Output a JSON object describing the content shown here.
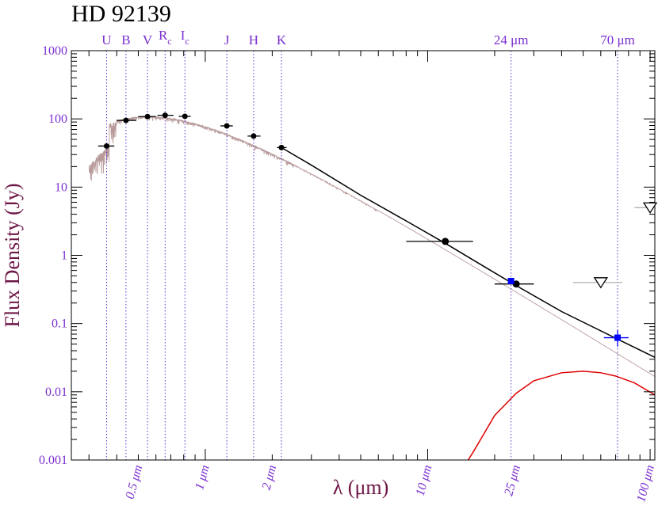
{
  "chart_data": {
    "type": "scatter",
    "title": "HD 92139",
    "xlabel": "λ (μm)",
    "ylabel": "Flux Density (Jy)",
    "xscale": "log",
    "yscale": "log",
    "xlim": [
      0.25,
      105
    ],
    "ylim": [
      0.001,
      1000
    ],
    "grid": false,
    "y_ticks": [
      {
        "value": 0.001,
        "label": "0.001"
      },
      {
        "value": 0.01,
        "label": "0.01"
      },
      {
        "value": 0.1,
        "label": "0.1"
      },
      {
        "value": 1,
        "label": "1"
      },
      {
        "value": 10,
        "label": "10"
      },
      {
        "value": 100,
        "label": "100"
      },
      {
        "value": 1000,
        "label": "1000"
      }
    ],
    "x_ticks": [
      {
        "value": 0.5,
        "label": "0.5 μm"
      },
      {
        "value": 1,
        "label": "1 μm"
      },
      {
        "value": 2,
        "label": "2 μm"
      },
      {
        "value": 10,
        "label": "10 μm"
      },
      {
        "value": 25,
        "label": "25 μm"
      },
      {
        "value": 100,
        "label": "100 μm"
      }
    ],
    "band_markers": [
      {
        "label": "U",
        "sub": "",
        "wavelength": 0.36
      },
      {
        "label": "B",
        "sub": "",
        "wavelength": 0.44
      },
      {
        "label": "V",
        "sub": "",
        "wavelength": 0.55
      },
      {
        "label": "R",
        "sub": "c",
        "wavelength": 0.66
      },
      {
        "label": "I",
        "sub": "c",
        "wavelength": 0.81
      },
      {
        "label": "J",
        "sub": "",
        "wavelength": 1.25
      },
      {
        "label": "H",
        "sub": "",
        "wavelength": 1.65
      },
      {
        "label": "K",
        "sub": "",
        "wavelength": 2.2
      },
      {
        "label": "24 μm",
        "sub": "",
        "wavelength": 23.7
      },
      {
        "label": "70 μm",
        "sub": "",
        "wavelength": 71.4
      }
    ],
    "photometry": [
      {
        "x": 0.36,
        "y": 40,
        "xerr": [
          0.33,
          0.39
        ]
      },
      {
        "x": 0.44,
        "y": 95,
        "xerr": [
          0.4,
          0.49
        ]
      },
      {
        "x": 0.55,
        "y": 108,
        "xerr": [
          0.5,
          0.6
        ]
      },
      {
        "x": 0.66,
        "y": 113,
        "xerr": [
          0.61,
          0.72
        ]
      },
      {
        "x": 0.81,
        "y": 109,
        "xerr": [
          0.76,
          0.86
        ]
      },
      {
        "x": 1.25,
        "y": 79,
        "xerr": [
          1.17,
          1.33
        ]
      },
      {
        "x": 1.65,
        "y": 56,
        "xerr": [
          1.55,
          1.77
        ]
      },
      {
        "x": 2.2,
        "y": 38,
        "xerr": [
          2.1,
          2.32
        ]
      },
      {
        "x": 12,
        "y": 1.6,
        "xerr": [
          8,
          16
        ]
      },
      {
        "x": 25,
        "y": 0.38,
        "xerr": [
          20,
          30
        ]
      }
    ],
    "spitzer": [
      {
        "x": 23.7,
        "y": 0.42
      },
      {
        "x": 71.4,
        "y": 0.062,
        "yerr": [
          0.046,
          0.08
        ],
        "xerr": [
          62,
          80
        ]
      }
    ],
    "upper_limits": [
      {
        "x": 60,
        "y": 0.4,
        "xerr": [
          45,
          75
        ]
      },
      {
        "x": 100,
        "y": 5,
        "xerr": [
          85,
          115
        ]
      }
    ],
    "series": [
      {
        "kind": "stellar-photosphere-model",
        "color": "#b89a9a"
      },
      {
        "kind": "total-model",
        "color": "#000000",
        "points": [
          [
            2.2,
            38
          ],
          [
            3,
            21
          ],
          [
            5,
            7.6
          ],
          [
            8,
            3.2
          ],
          [
            12,
            1.5
          ],
          [
            18,
            0.68
          ],
          [
            25,
            0.36
          ],
          [
            40,
            0.15
          ],
          [
            70,
            0.061
          ],
          [
            105,
            0.032
          ]
        ]
      },
      {
        "kind": "disk-blackbody",
        "color": "#e00000",
        "points": [
          [
            15.2,
            0.001
          ],
          [
            16,
            0.0013
          ],
          [
            18,
            0.0025
          ],
          [
            20,
            0.0045
          ],
          [
            25,
            0.0095
          ],
          [
            30,
            0.0145
          ],
          [
            40,
            0.019
          ],
          [
            50,
            0.02
          ],
          [
            60,
            0.019
          ],
          [
            70,
            0.017
          ],
          [
            85,
            0.0135
          ],
          [
            105,
            0.009
          ]
        ]
      }
    ],
    "colors": {
      "axis_text": "#7b2fd0",
      "ylabel": "#6e1646",
      "photometry": "#000000",
      "spitzer": "#0000ff",
      "band_lines": "#5a2fd0"
    }
  }
}
